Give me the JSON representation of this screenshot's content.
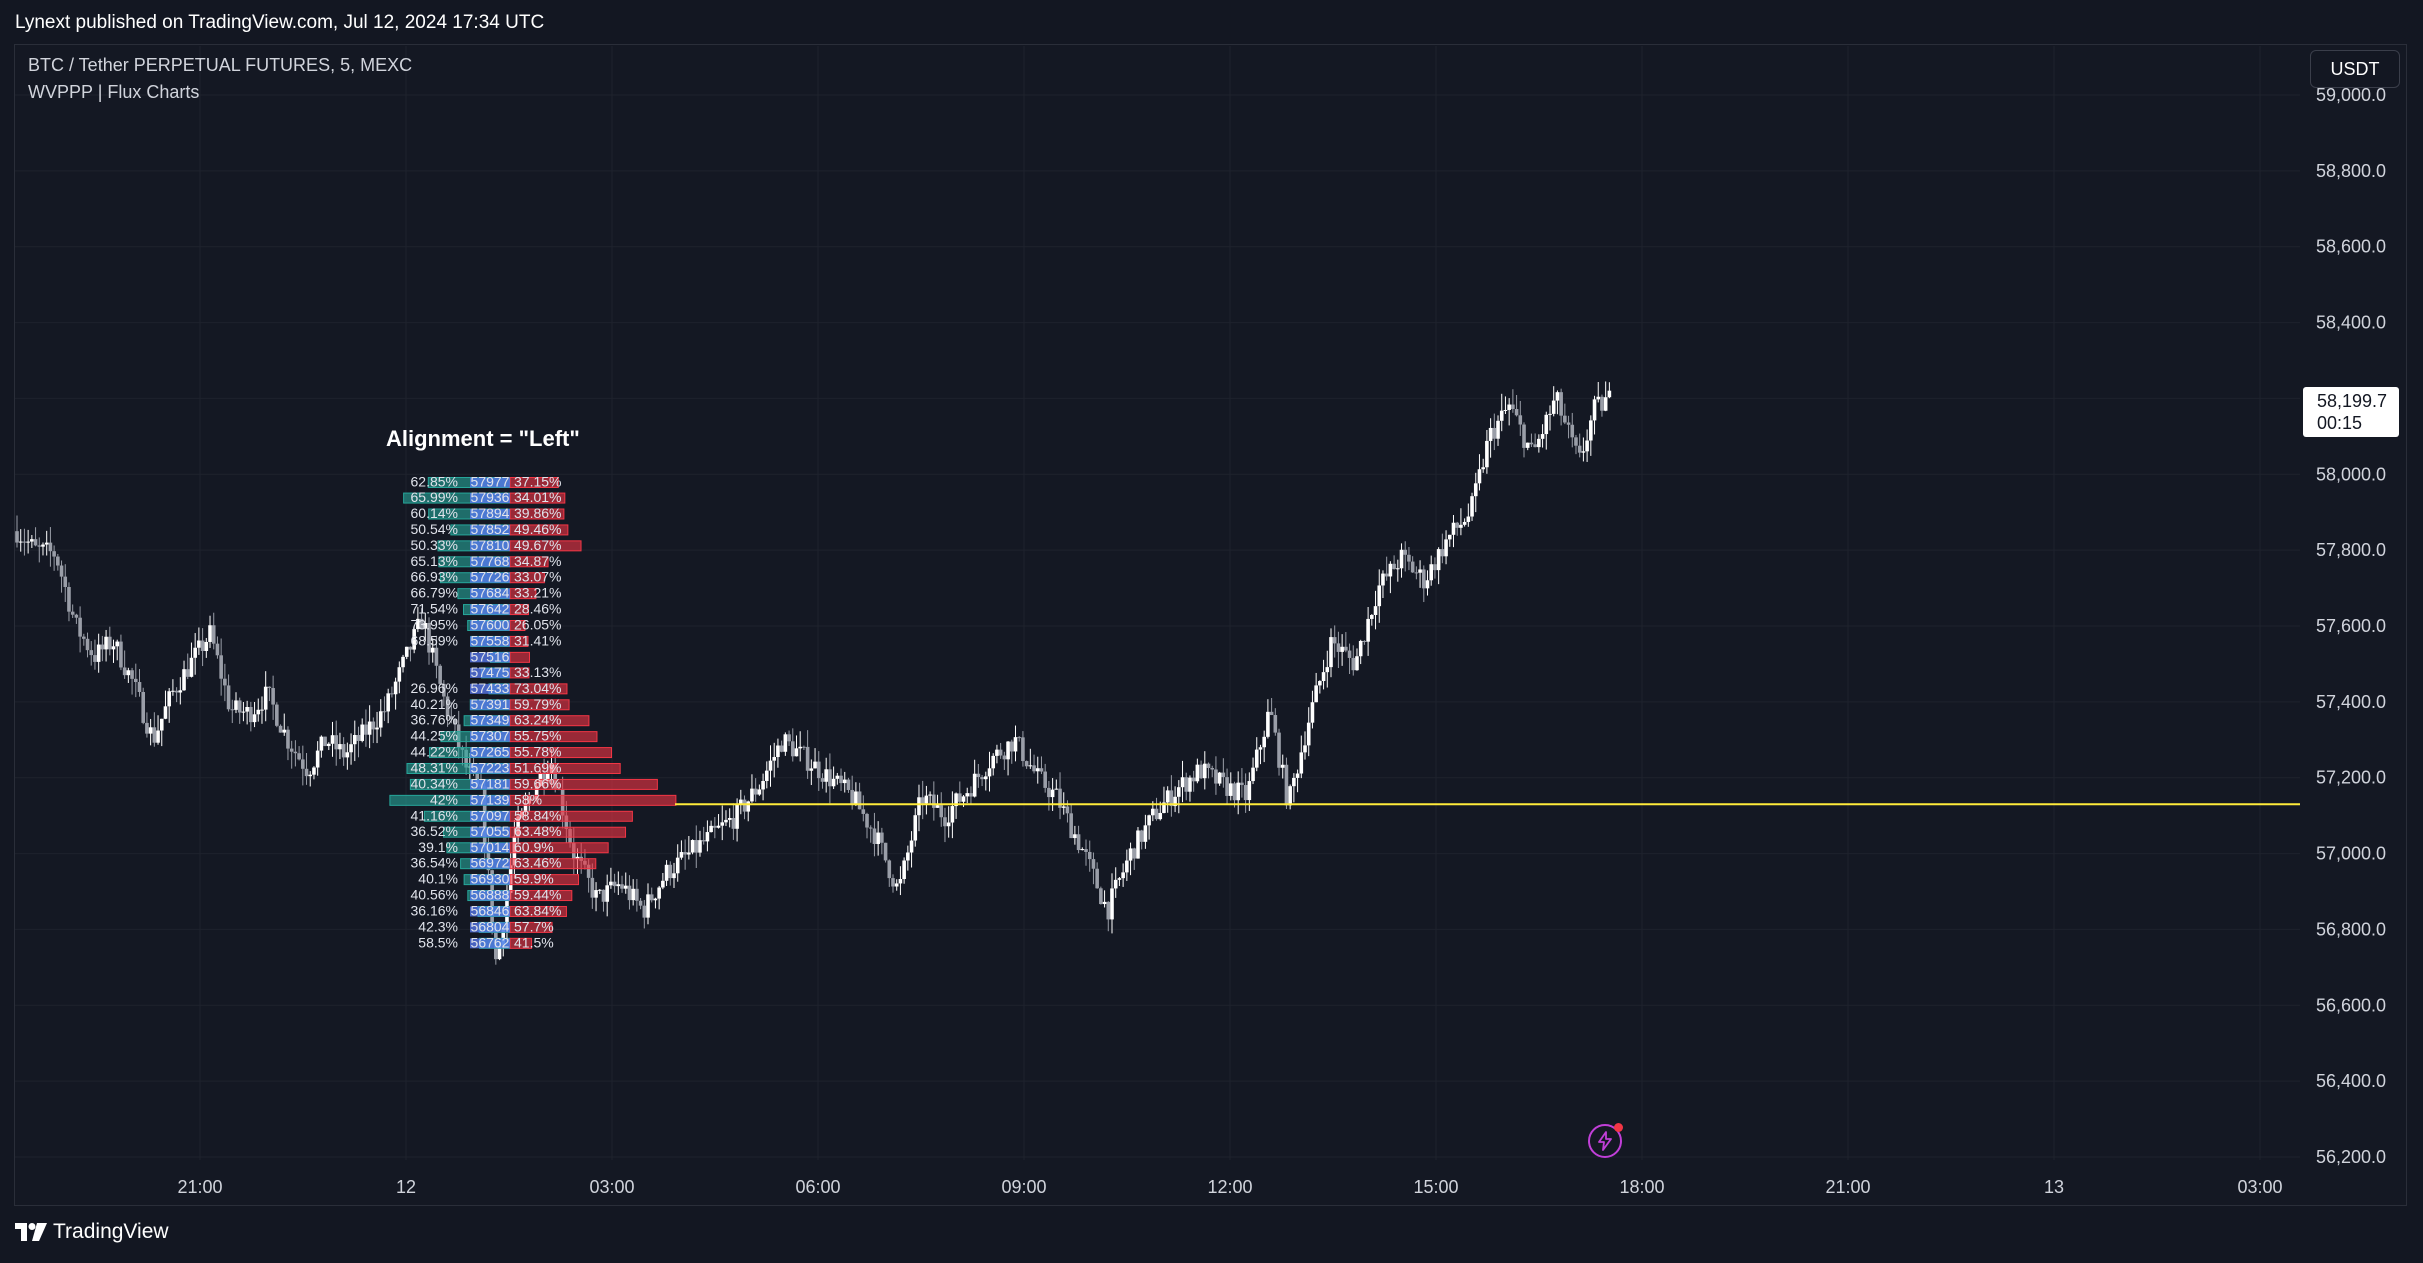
{
  "header": {
    "publish_text": "Lynext published on TradingView.com, Jul 12, 2024 17:34 UTC"
  },
  "pane": {
    "symbol_line": "BTC / Tether PERPETUAL FUTURES, 5, MEXC",
    "indicator_line": "WVPPP | Flux Charts",
    "currency_button": "USDT",
    "annotation": "Alignment = \"Left\""
  },
  "last_price": {
    "value": "58,199.7",
    "countdown": "00:15"
  },
  "footer": {
    "brand": "TradingView"
  },
  "icons": {
    "replay": "lightning-icon",
    "logo": "tradingview-logo-icon"
  },
  "colors": {
    "background": "#131722",
    "buy": "#26a69a",
    "sell": "#f23645",
    "poc": "#5b7cf5",
    "poc_line": "#ffeb3b",
    "candle": "#ffffff"
  },
  "chart_data": {
    "type": "candlestick",
    "title": "BTC / Tether PERPETUAL FUTURES, 5, MEXC",
    "y_axis": {
      "range": [
        56200,
        59000
      ],
      "tick_labels": [
        "59,000.0",
        "58,800.0",
        "58,600.0",
        "58,400.0",
        "58,200.0",
        "58,000.0",
        "57,800.0",
        "57,600.0",
        "57,400.0",
        "57,200.0",
        "57,000.0",
        "56,800.0",
        "56,600.0",
        "56,400.0",
        "56,200.0"
      ]
    },
    "x_axis": {
      "tick_labels": [
        "21:00",
        "12",
        "03:00",
        "06:00",
        "09:00",
        "12:00",
        "15:00",
        "18:00",
        "21:00",
        "13",
        "03:00"
      ]
    },
    "last_price": 58199.7,
    "poc_price": 57130,
    "path": [
      [
        0,
        57850
      ],
      [
        12,
        57800
      ],
      [
        25,
        57790
      ],
      [
        38,
        57600
      ],
      [
        50,
        57520
      ],
      [
        62,
        57560
      ],
      [
        75,
        57450
      ],
      [
        88,
        57300
      ],
      [
        100,
        57420
      ],
      [
        112,
        57500
      ],
      [
        125,
        57580
      ],
      [
        138,
        57380
      ],
      [
        150,
        57370
      ],
      [
        162,
        57420
      ],
      [
        175,
        57300
      ],
      [
        188,
        57220
      ],
      [
        200,
        57300
      ],
      [
        212,
        57260
      ],
      [
        225,
        57320
      ],
      [
        238,
        57380
      ],
      [
        250,
        57500
      ],
      [
        262,
        57620
      ],
      [
        275,
        57420
      ],
      [
        290,
        57230
      ],
      [
        300,
        57150
      ],
      [
        310,
        56700
      ],
      [
        322,
        57050
      ],
      [
        335,
        57180
      ],
      [
        345,
        57250
      ],
      [
        360,
        57000
      ],
      [
        375,
        56880
      ],
      [
        390,
        56920
      ],
      [
        405,
        56850
      ],
      [
        420,
        56950
      ],
      [
        435,
        57000
      ],
      [
        450,
        57050
      ],
      [
        465,
        57100
      ],
      [
        480,
        57180
      ],
      [
        495,
        57300
      ],
      [
        510,
        57250
      ],
      [
        525,
        57200
      ],
      [
        540,
        57150
      ],
      [
        555,
        57050
      ],
      [
        570,
        56900
      ],
      [
        585,
        57150
      ],
      [
        600,
        57100
      ],
      [
        615,
        57170
      ],
      [
        630,
        57250
      ],
      [
        645,
        57300
      ],
      [
        660,
        57200
      ],
      [
        672,
        57150
      ],
      [
        690,
        57000
      ],
      [
        705,
        56850
      ],
      [
        720,
        57000
      ],
      [
        735,
        57100
      ],
      [
        750,
        57170
      ],
      [
        765,
        57220
      ],
      [
        780,
        57180
      ],
      [
        795,
        57150
      ],
      [
        810,
        57380
      ],
      [
        822,
        57130
      ],
      [
        835,
        57350
      ],
      [
        850,
        57560
      ],
      [
        865,
        57500
      ],
      [
        880,
        57700
      ],
      [
        895,
        57780
      ],
      [
        910,
        57720
      ],
      [
        925,
        57830
      ],
      [
        940,
        57900
      ],
      [
        952,
        58100
      ],
      [
        965,
        58180
      ],
      [
        980,
        58050
      ],
      [
        995,
        58200
      ],
      [
        1010,
        58030
      ],
      [
        1020,
        58170
      ],
      [
        1030,
        58200
      ]
    ],
    "volume_profile": [
      {
        "price": 57977,
        "label": "57977",
        "buy_pct": 62.85,
        "sell_pct": 37.15
      },
      {
        "price": 57936,
        "label": "57936",
        "buy_pct": 65.99,
        "sell_pct": 34.01
      },
      {
        "price": 57894,
        "label": "57894",
        "buy_pct": 60.14,
        "sell_pct": 39.86
      },
      {
        "price": 57852,
        "label": "57852",
        "buy_pct": 50.54,
        "sell_pct": 49.46
      },
      {
        "price": 57810,
        "label": "57810",
        "buy_pct": 50.33,
        "sell_pct": 49.67
      },
      {
        "price": 57768,
        "label": "57768",
        "buy_pct": 65.13,
        "sell_pct": 34.87
      },
      {
        "price": 57726,
        "label": "57726",
        "buy_pct": 66.93,
        "sell_pct": 33.07
      },
      {
        "price": 57684,
        "label": "57684",
        "buy_pct": 66.79,
        "sell_pct": 33.21
      },
      {
        "price": 57642,
        "label": "57642",
        "buy_pct": 71.54,
        "sell_pct": 28.46
      },
      {
        "price": 57600,
        "label": "57600",
        "buy_pct": 73.95,
        "sell_pct": 26.05
      },
      {
        "price": 57558,
        "label": "57558",
        "buy_pct": 68.59,
        "sell_pct": 31.41
      },
      {
        "price": 57516,
        "label": "57516",
        "buy_pct": null,
        "sell_pct": null
      },
      {
        "price": 57475,
        "label": "57475",
        "buy_pct": null,
        "sell_pct": 33.13
      },
      {
        "price": 57433,
        "label": "57433",
        "buy_pct": 26.96,
        "sell_pct": 73.04
      },
      {
        "price": 57391,
        "label": "57391",
        "buy_pct": 40.21,
        "sell_pct": 59.79
      },
      {
        "price": 57349,
        "label": "57349",
        "buy_pct": 36.76,
        "sell_pct": 63.24
      },
      {
        "price": 57307,
        "label": "57307",
        "buy_pct": 44.25,
        "sell_pct": 55.75
      },
      {
        "price": 57265,
        "label": "57265",
        "buy_pct": 44.22,
        "sell_pct": 55.78
      },
      {
        "price": 57223,
        "label": "57223",
        "buy_pct": 48.31,
        "sell_pct": 51.69
      },
      {
        "price": 57181,
        "label": "57181",
        "buy_pct": 40.34,
        "sell_pct": 59.66
      },
      {
        "price": 57139,
        "label": "57139",
        "buy_pct": 42.0,
        "sell_pct": 58.0
      },
      {
        "price": 57097,
        "label": "57097",
        "buy_pct": 41.16,
        "sell_pct": 58.84
      },
      {
        "price": 57055,
        "label": "57055",
        "buy_pct": 36.52,
        "sell_pct": 63.48
      },
      {
        "price": 57014,
        "label": "57014",
        "buy_pct": 39.1,
        "sell_pct": 60.9
      },
      {
        "price": 56972,
        "label": "56972",
        "buy_pct": 36.54,
        "sell_pct": 63.46
      },
      {
        "price": 56930,
        "label": "56930",
        "buy_pct": 40.1,
        "sell_pct": 59.9
      },
      {
        "price": 56888,
        "label": "56888",
        "buy_pct": 40.56,
        "sell_pct": 59.44
      },
      {
        "price": 56846,
        "label": "56846",
        "buy_pct": 36.16,
        "sell_pct": 63.84
      },
      {
        "price": 56804,
        "label": "56804",
        "buy_pct": 42.3,
        "sell_pct": 57.7
      },
      {
        "price": 56762,
        "label": "56762",
        "buy_pct": 58.5,
        "sell_pct": 41.5
      }
    ],
    "profile_volume_scale": [
      50,
      62,
      52,
      45,
      55,
      42,
      40,
      30,
      25,
      22,
      22,
      15,
      22,
      30,
      38,
      48,
      60,
      70,
      82,
      95,
      110,
      80,
      70,
      62,
      52,
      44,
      40,
      34,
      28,
      20
    ]
  }
}
